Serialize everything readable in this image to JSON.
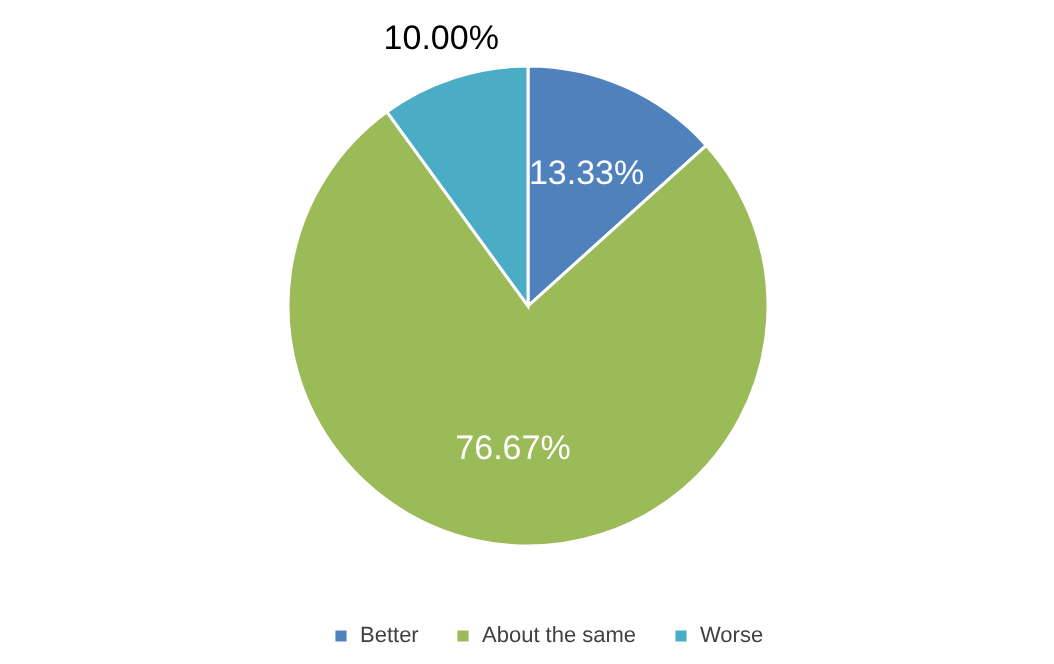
{
  "chart_data": {
    "type": "pie",
    "categories": [
      "Better",
      "About the same",
      "Worse"
    ],
    "values": [
      13.33,
      76.67,
      10.0
    ],
    "colors": [
      "#4f81bd",
      "#9bbb59",
      "#4bacc6"
    ],
    "value_labels": [
      "13.33%",
      "76.67%",
      "10.00%"
    ],
    "legend": "bottom"
  }
}
